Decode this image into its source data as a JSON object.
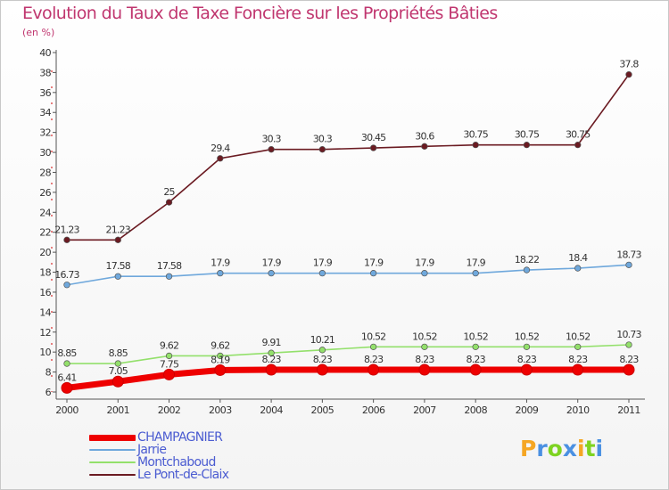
{
  "chart_data": {
    "type": "line",
    "title": "Evolution du Taux de Taxe Foncière sur les Propriétés Bâties",
    "ylabel": "(en %)",
    "xlabel": "",
    "categories": [
      "2000",
      "2001",
      "2002",
      "2003",
      "2004",
      "2005",
      "2006",
      "2007",
      "2008",
      "2009",
      "2010",
      "2011"
    ],
    "yticks": [
      "6",
      "8",
      "10",
      "12",
      "14",
      "16",
      "18",
      "20",
      "22",
      "24",
      "26",
      "28",
      "30",
      "32",
      "34",
      "36",
      "38",
      "40"
    ],
    "ylim": [
      6,
      40
    ],
    "grid": false,
    "legend_position": "bottom-left",
    "series": [
      {
        "name": "Le Pont-de-Claix",
        "color": "#6b1b22",
        "values": [
          21.23,
          21.23,
          25,
          29.4,
          30.3,
          30.3,
          30.45,
          30.6,
          30.75,
          30.75,
          30.75,
          37.8
        ],
        "labels": [
          "21.23",
          "21.23",
          "25",
          "29.4",
          "30.3",
          "30.3",
          "30.45",
          "30.6",
          "30.75",
          "30.75",
          "30.75",
          "37.8"
        ]
      },
      {
        "name": "Jarrie",
        "color": "#6fa8dc",
        "values": [
          16.73,
          17.58,
          17.58,
          17.9,
          17.9,
          17.9,
          17.9,
          17.9,
          17.9,
          18.22,
          18.4,
          18.73
        ],
        "labels": [
          "16.73",
          "17.58",
          "17.58",
          "17.9",
          "17.9",
          "17.9",
          "17.9",
          "17.9",
          "17.9",
          "18.22",
          "18.4",
          "18.73"
        ]
      },
      {
        "name": "Montchaboud",
        "color": "#93e06b",
        "values": [
          8.85,
          8.85,
          9.62,
          9.62,
          9.91,
          10.21,
          10.52,
          10.52,
          10.52,
          10.52,
          10.52,
          10.73
        ],
        "labels": [
          "8.85",
          "8.85",
          "9.62",
          "9.62",
          "9.91",
          "10.21",
          "10.52",
          "10.52",
          "10.52",
          "10.52",
          "10.52",
          "10.73"
        ]
      },
      {
        "name": "CHAMPAGNIER",
        "color": "#ee0000",
        "values": [
          6.41,
          7.05,
          7.75,
          8.19,
          8.23,
          8.23,
          8.23,
          8.23,
          8.23,
          8.23,
          8.23,
          8.23
        ],
        "labels": [
          "6.41",
          "7.05",
          "7.75",
          "8.19",
          "8.23",
          "8.23",
          "8.23",
          "8.23",
          "8.23",
          "8.23",
          "8.23",
          "8.23"
        ]
      }
    ],
    "legend": [
      "CHAMPAGNIER",
      "Jarrie",
      "Montchaboud",
      "Le Pont-de-Claix"
    ]
  },
  "legend_colors": {
    "CHAMPAGNIER": "#ee0000",
    "Jarrie": "#6fa8dc",
    "Montchaboud": "#93e06b",
    "Le Pont-de-Claix": "#6b1b22"
  },
  "logo": {
    "text": "Proxiti",
    "letters": [
      "P",
      "r",
      "o",
      "x",
      "i",
      "t",
      "i"
    ],
    "colors": [
      "#f5a623",
      "#4a90e2",
      "#7ed321",
      "#4a90e2",
      "#f5a623",
      "#7ed321",
      "#4a90e2"
    ]
  }
}
